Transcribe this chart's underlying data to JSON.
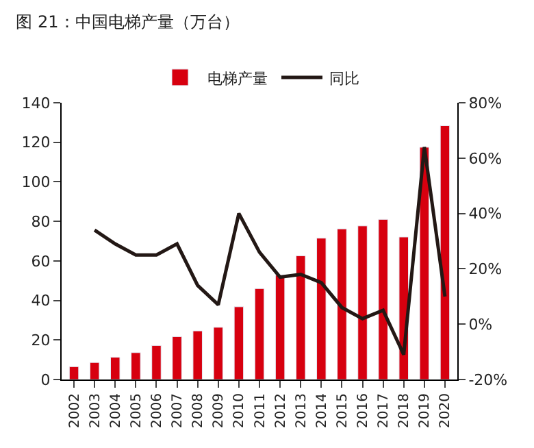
{
  "chart_data": {
    "type": "bar",
    "title": "图 21：中国电梯产量（万台）",
    "categories": [
      "2002",
      "2003",
      "2004",
      "2005",
      "2006",
      "2007",
      "2008",
      "2009",
      "2010",
      "2011",
      "2012",
      "2013",
      "2014",
      "2015",
      "2016",
      "2017",
      "2018",
      "2019",
      "2020"
    ],
    "series": [
      {
        "name": "电梯产量",
        "color": "#d7000f",
        "values": [
          6.5,
          8.6,
          11.3,
          13.6,
          17.2,
          21.7,
          24.6,
          26.4,
          36.8,
          46,
          52.8,
          62.6,
          71.5,
          76.2,
          77.7,
          81,
          72.1,
          117.5,
          128.4
        ]
      },
      {
        "name": "同比",
        "type": "line",
        "axis": "y2",
        "color": "#231815",
        "values": [
          null,
          34,
          29,
          25,
          25,
          29,
          14,
          7,
          40,
          26,
          17,
          18,
          15,
          6,
          2,
          5,
          -11,
          64,
          10
        ]
      }
    ],
    "ylim": [
      0,
      140
    ],
    "yticks": [
      0,
      20,
      40,
      60,
      80,
      100,
      120,
      140
    ],
    "y2lim": [
      -20,
      80
    ],
    "y2ticks": [
      {
        "value": -20,
        "label": "-20%"
      },
      {
        "value": 0,
        "label": "0%"
      },
      {
        "value": 20,
        "label": "20%"
      },
      {
        "value": 40,
        "label": "40%"
      },
      {
        "value": 60,
        "label": "60%"
      },
      {
        "value": 80,
        "label": "80%"
      }
    ],
    "legend": "top",
    "marker": "none",
    "line_style": "solid"
  }
}
